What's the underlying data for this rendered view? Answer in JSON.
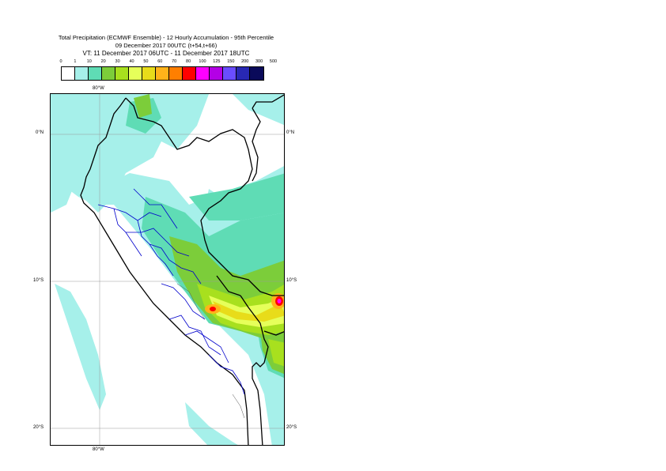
{
  "title": {
    "line1": "Total Precipitation (ECMWF Ensemble) - 12 Hourly Accumulation - 95th Percentile",
    "line2": "09 December 2017 00UTC (t+54,t+66)",
    "line3": "VT: 11 December 2017 06UTC - 11 December 2017 18UTC"
  },
  "legend": {
    "levels": [
      "0",
      "1",
      "10",
      "20",
      "30",
      "40",
      "50",
      "60",
      "70",
      "80",
      "100",
      "125",
      "150",
      "200",
      "300",
      "500"
    ],
    "colors": [
      "#ffffff",
      "#a6f0ea",
      "#5fdcb5",
      "#7ccd3a",
      "#a8e01e",
      "#e6ff5a",
      "#e8dc1a",
      "#ffb31a",
      "#ff7f00",
      "#ff0000",
      "#ff00ff",
      "#b400e6",
      "#6a4dff",
      "#2828b4",
      "#0a0a5a"
    ]
  },
  "axes": {
    "lon_top": "80°W",
    "lon_bottom": "80°W",
    "lat_left": [
      "0°N",
      "10°S",
      "20°S"
    ],
    "lat_right": [
      "0°N",
      "10°S",
      "20°S"
    ]
  },
  "map": {
    "precip_colors": {
      "light": "#a6f0ea",
      "moderate": "#5fdcb5",
      "heavy": "#7ccd3a",
      "very_heavy": "#a8e01e",
      "yellow": "#e6ff5a",
      "gold": "#e8dc1a",
      "orange": "#ffb31a",
      "red": "#ff0000",
      "magenta": "#ff00ff"
    },
    "border_color": "#000000",
    "region_border_color": "#0000cc"
  }
}
